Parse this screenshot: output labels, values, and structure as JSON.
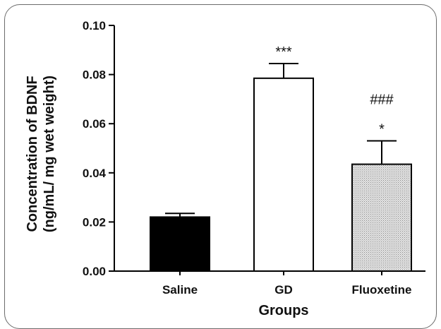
{
  "chart_data": {
    "type": "bar",
    "title": "",
    "xlabel": "Groups",
    "ylabel_lines": [
      "Concentration of BDNF",
      "(ng/mL/ mg wet weight)"
    ],
    "ylim": [
      0,
      0.1
    ],
    "yticks": [
      "0.00",
      "0.02",
      "0.04",
      "0.06",
      "0.08",
      "0.10"
    ],
    "categories": [
      "Saline",
      "GD",
      "Fluoxetine"
    ],
    "values": [
      0.022,
      0.0785,
      0.0435
    ],
    "errors": [
      0.0015,
      0.006,
      0.0095
    ],
    "fills": [
      "#000000",
      "#ffffff",
      "#d4d4d4"
    ],
    "annotations": [
      {
        "category": "GD",
        "lines": [
          "***"
        ]
      },
      {
        "category": "Fluoxetine",
        "lines": [
          "###",
          "*"
        ]
      }
    ],
    "grid": false
  }
}
